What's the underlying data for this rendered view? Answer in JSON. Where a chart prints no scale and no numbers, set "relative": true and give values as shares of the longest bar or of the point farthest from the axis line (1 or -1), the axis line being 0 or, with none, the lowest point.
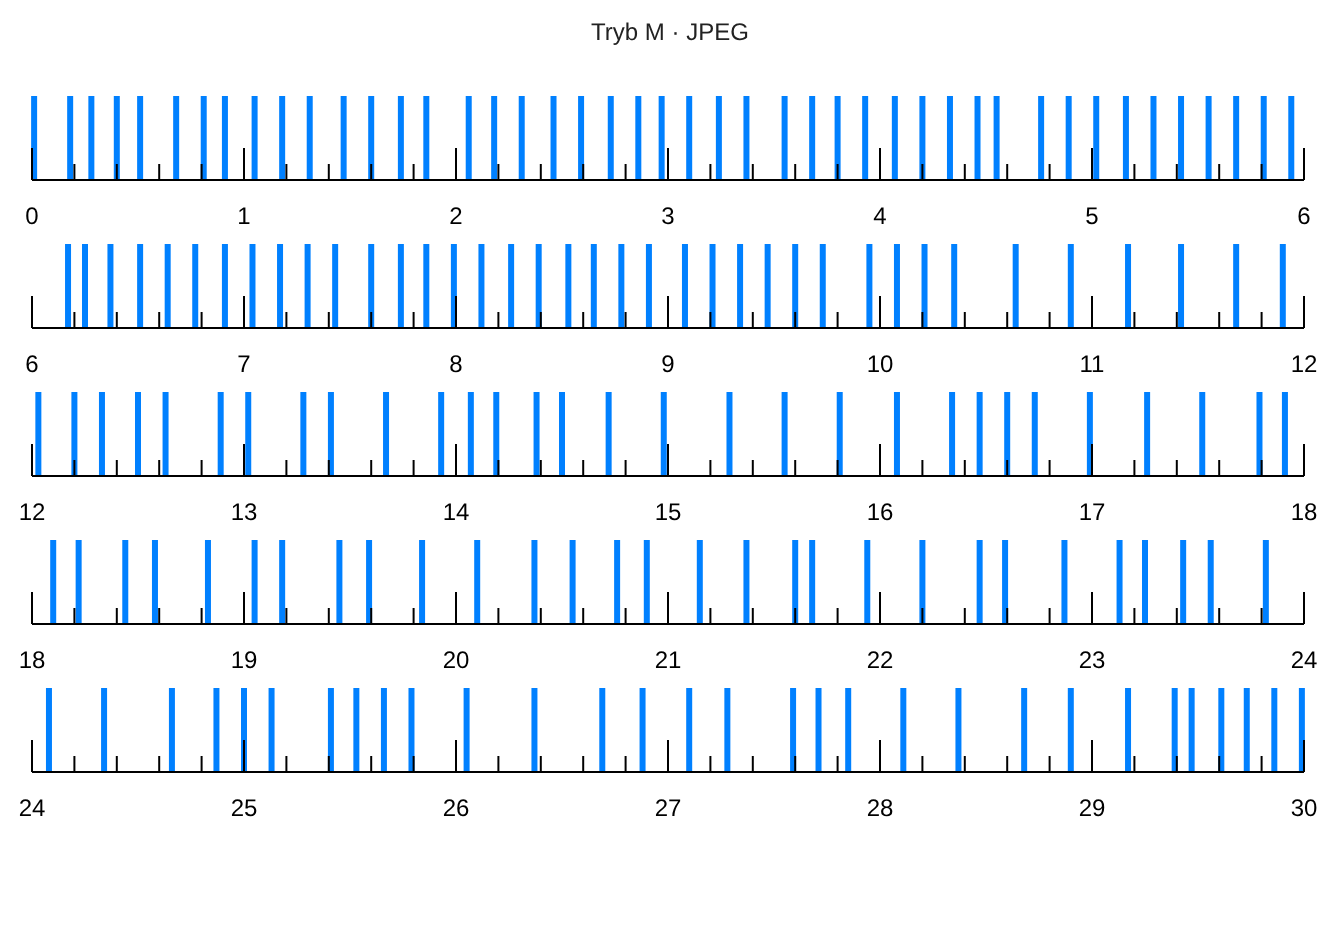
{
  "chart_data": [
    {
      "type": "bar",
      "title": "Tryb M · JPEG",
      "relative": true,
      "color": "#0080ff",
      "x": [
        0.01,
        0.18,
        0.28,
        0.4,
        0.51,
        0.68,
        0.81,
        0.91,
        1.05,
        1.18,
        1.31,
        1.47,
        1.6,
        1.74,
        1.86,
        2.06,
        2.18,
        2.31,
        2.46,
        2.59,
        2.73,
        2.86,
        2.97,
        3.1,
        3.24,
        3.37,
        3.55,
        3.68,
        3.8,
        3.93,
        4.07,
        4.2,
        4.33,
        4.46,
        4.55,
        4.76,
        4.89,
        5.02,
        5.16,
        5.29,
        5.42,
        5.55,
        5.68,
        5.81,
        5.94
      ],
      "values": [
        1,
        1,
        1,
        1,
        1,
        1,
        1,
        1,
        1,
        1,
        1,
        1,
        1,
        1,
        1,
        1,
        1,
        1,
        1,
        1,
        1,
        1,
        1,
        1,
        1,
        1,
        1,
        1,
        1,
        1,
        1,
        1,
        1,
        1,
        1,
        1,
        1,
        1,
        1,
        1,
        1,
        1,
        1,
        1,
        1
      ],
      "xlim": [
        0,
        6
      ],
      "xticks": [
        0,
        {
          "value": 0.2,
          "label": null
        },
        {
          "value": 0.4,
          "label": null
        },
        {
          "value": 0.6,
          "label": null
        },
        {
          "value": 0.8,
          "label": null
        },
        1,
        {
          "value": 1.2,
          "label": null
        },
        {
          "value": 1.4,
          "label": null
        },
        {
          "value": 1.6,
          "label": null
        },
        {
          "value": 1.8,
          "label": null
        },
        2,
        {
          "value": 2.2,
          "label": null
        },
        {
          "value": 2.4,
          "label": null
        },
        {
          "value": 2.6,
          "label": null
        },
        {
          "value": 2.8,
          "label": null
        },
        3,
        {
          "value": 3.2,
          "label": null
        },
        {
          "value": 3.4,
          "label": null
        },
        {
          "value": 3.6,
          "label": null
        },
        {
          "value": 3.8,
          "label": null
        },
        4,
        {
          "value": 4.2,
          "label": null
        },
        {
          "value": 4.4,
          "label": null
        },
        {
          "value": 4.6,
          "label": null
        },
        {
          "value": 4.8,
          "label": null
        },
        5,
        {
          "value": 5.2,
          "label": null
        },
        {
          "value": 5.4,
          "label": null
        },
        {
          "value": 5.6,
          "label": null
        },
        {
          "value": 5.8,
          "label": null
        },
        6
      ]
    },
    {
      "type": "bar",
      "relative": true,
      "color": "#0080ff",
      "x": [
        6.17,
        6.25,
        6.37,
        6.51,
        6.64,
        6.77,
        6.91,
        7.04,
        7.17,
        7.3,
        7.43,
        7.6,
        7.74,
        7.86,
        7.99,
        8.12,
        8.26,
        8.39,
        8.53,
        8.65,
        8.78,
        8.91,
        9.08,
        9.21,
        9.34,
        9.47,
        9.6,
        9.73,
        9.95,
        10.08,
        10.21,
        10.35,
        10.64,
        10.9,
        11.17,
        11.42,
        11.68,
        11.9
      ],
      "values": [
        1,
        1,
        1,
        1,
        1,
        1,
        1,
        1,
        1,
        1,
        1,
        1,
        1,
        1,
        1,
        1,
        1,
        1,
        1,
        1,
        1,
        1,
        1,
        1,
        1,
        1,
        1,
        1,
        1,
        1,
        1,
        1,
        1,
        1,
        1,
        1,
        1,
        1
      ],
      "xlim": [
        6,
        12
      ],
      "xticks": [
        6,
        {
          "value": 6.2,
          "label": null
        },
        {
          "value": 6.4,
          "label": null
        },
        {
          "value": 6.6,
          "label": null
        },
        {
          "value": 6.8,
          "label": null
        },
        7,
        {
          "value": 7.2,
          "label": null
        },
        {
          "value": 7.4,
          "label": null
        },
        {
          "value": 7.6,
          "label": null
        },
        {
          "value": 7.8,
          "label": null
        },
        8,
        {
          "value": 8.2,
          "label": null
        },
        {
          "value": 8.4,
          "label": null
        },
        {
          "value": 8.6,
          "label": null
        },
        {
          "value": 8.8,
          "label": null
        },
        9,
        {
          "value": 9.2,
          "label": null
        },
        {
          "value": 9.4,
          "label": null
        },
        {
          "value": 9.6,
          "label": null
        },
        {
          "value": 9.8,
          "label": null
        },
        10,
        {
          "value": 10.2,
          "label": null
        },
        {
          "value": 10.4,
          "label": null
        },
        {
          "value": 10.6,
          "label": null
        },
        {
          "value": 10.8,
          "label": null
        },
        11,
        {
          "value": 11.2,
          "label": null
        },
        {
          "value": 11.4,
          "label": null
        },
        {
          "value": 11.6,
          "label": null
        },
        {
          "value": 11.8,
          "label": null
        },
        12
      ]
    },
    {
      "type": "bar",
      "relative": true,
      "color": "#0080ff",
      "x": [
        12.03,
        12.2,
        12.33,
        12.5,
        12.63,
        12.89,
        13.02,
        13.28,
        13.41,
        13.67,
        13.93,
        14.07,
        14.19,
        14.38,
        14.5,
        14.72,
        14.98,
        15.29,
        15.55,
        15.81,
        16.08,
        16.34,
        16.47,
        16.6,
        16.73,
        16.99,
        17.26,
        17.52,
        17.79,
        17.91
      ],
      "values": [
        1,
        1,
        1,
        1,
        1,
        1,
        1,
        1,
        1,
        1,
        1,
        1,
        1,
        1,
        1,
        1,
        1,
        1,
        1,
        1,
        1,
        1,
        1,
        1,
        1,
        1,
        1,
        1,
        1,
        1
      ],
      "xlim": [
        12,
        18
      ],
      "xticks": [
        12,
        {
          "value": 12.2,
          "label": null
        },
        {
          "value": 12.4,
          "label": null
        },
        {
          "value": 12.6,
          "label": null
        },
        {
          "value": 12.8,
          "label": null
        },
        13,
        {
          "value": 13.2,
          "label": null
        },
        {
          "value": 13.4,
          "label": null
        },
        {
          "value": 13.6,
          "label": null
        },
        {
          "value": 13.8,
          "label": null
        },
        14,
        {
          "value": 14.2,
          "label": null
        },
        {
          "value": 14.4,
          "label": null
        },
        {
          "value": 14.6,
          "label": null
        },
        {
          "value": 14.8,
          "label": null
        },
        15,
        {
          "value": 15.2,
          "label": null
        },
        {
          "value": 15.4,
          "label": null
        },
        {
          "value": 15.6,
          "label": null
        },
        {
          "value": 15.8,
          "label": null
        },
        16,
        {
          "value": 16.2,
          "label": null
        },
        {
          "value": 16.4,
          "label": null
        },
        {
          "value": 16.6,
          "label": null
        },
        {
          "value": 16.8,
          "label": null
        },
        17,
        {
          "value": 17.2,
          "label": null
        },
        {
          "value": 17.4,
          "label": null
        },
        {
          "value": 17.6,
          "label": null
        },
        {
          "value": 17.8,
          "label": null
        },
        18
      ]
    },
    {
      "type": "bar",
      "relative": true,
      "color": "#0080ff",
      "x": [
        18.1,
        18.22,
        18.44,
        18.58,
        18.83,
        19.05,
        19.18,
        19.45,
        19.59,
        19.84,
        20.1,
        20.37,
        20.55,
        20.76,
        20.9,
        21.15,
        21.37,
        21.6,
        21.68,
        21.94,
        22.2,
        22.47,
        22.59,
        22.87,
        23.13,
        23.25,
        23.43,
        23.56,
        23.82
      ],
      "values": [
        1,
        1,
        1,
        1,
        1,
        1,
        1,
        1,
        1,
        1,
        1,
        1,
        1,
        1,
        1,
        1,
        1,
        1,
        1,
        1,
        1,
        1,
        1,
        1,
        1,
        1,
        1,
        1,
        1
      ],
      "xlim": [
        18,
        24
      ],
      "xticks": [
        18,
        {
          "value": 18.2,
          "label": null
        },
        {
          "value": 18.4,
          "label": null
        },
        {
          "value": 18.6,
          "label": null
        },
        {
          "value": 18.8,
          "label": null
        },
        19,
        {
          "value": 19.2,
          "label": null
        },
        {
          "value": 19.4,
          "label": null
        },
        {
          "value": 19.6,
          "label": null
        },
        {
          "value": 19.8,
          "label": null
        },
        20,
        {
          "value": 20.2,
          "label": null
        },
        {
          "value": 20.4,
          "label": null
        },
        {
          "value": 20.6,
          "label": null
        },
        {
          "value": 20.8,
          "label": null
        },
        21,
        {
          "value": 21.2,
          "label": null
        },
        {
          "value": 21.4,
          "label": null
        },
        {
          "value": 21.6,
          "label": null
        },
        {
          "value": 21.8,
          "label": null
        },
        22,
        {
          "value": 22.2,
          "label": null
        },
        {
          "value": 22.4,
          "label": null
        },
        {
          "value": 22.6,
          "label": null
        },
        {
          "value": 22.8,
          "label": null
        },
        23,
        {
          "value": 23.2,
          "label": null
        },
        {
          "value": 23.4,
          "label": null
        },
        {
          "value": 23.6,
          "label": null
        },
        {
          "value": 23.8,
          "label": null
        },
        24
      ]
    },
    {
      "type": "bar",
      "relative": true,
      "color": "#0080ff",
      "x": [
        24.08,
        24.34,
        24.66,
        24.87,
        25.0,
        25.13,
        25.41,
        25.53,
        25.66,
        25.79,
        26.05,
        26.37,
        26.69,
        26.88,
        27.1,
        27.28,
        27.59,
        27.71,
        27.85,
        28.11,
        28.37,
        28.68,
        28.9,
        29.17,
        29.39,
        29.47,
        29.61,
        29.73,
        29.86,
        29.99
      ],
      "values": [
        1,
        1,
        1,
        1,
        1,
        1,
        1,
        1,
        1,
        1,
        1,
        1,
        1,
        1,
        1,
        1,
        1,
        1,
        1,
        1,
        1,
        1,
        1,
        1,
        1,
        1,
        1,
        1,
        1,
        1
      ],
      "xlim": [
        24,
        30
      ],
      "xticks": [
        24,
        {
          "value": 24.2,
          "label": null
        },
        {
          "value": 24.4,
          "label": null
        },
        {
          "value": 24.6,
          "label": null
        },
        {
          "value": 24.8,
          "label": null
        },
        25,
        {
          "value": 25.2,
          "label": null
        },
        {
          "value": 25.4,
          "label": null
        },
        {
          "value": 25.6,
          "label": null
        },
        {
          "value": 25.8,
          "label": null
        },
        26,
        {
          "value": 26.2,
          "label": null
        },
        {
          "value": 26.4,
          "label": null
        },
        {
          "value": 26.6,
          "label": null
        },
        {
          "value": 26.8,
          "label": null
        },
        27,
        {
          "value": 27.2,
          "label": null
        },
        {
          "value": 27.4,
          "label": null
        },
        {
          "value": 27.6,
          "label": null
        },
        {
          "value": 27.8,
          "label": null
        },
        28,
        {
          "value": 28.2,
          "label": null
        },
        {
          "value": 28.4,
          "label": null
        },
        {
          "value": 28.6,
          "label": null
        },
        {
          "value": 28.8,
          "label": null
        },
        29,
        {
          "value": 29.2,
          "label": null
        },
        {
          "value": 29.4,
          "label": null
        },
        {
          "value": 29.6,
          "label": null
        },
        {
          "value": 29.8,
          "label": null
        },
        30
      ]
    }
  ]
}
